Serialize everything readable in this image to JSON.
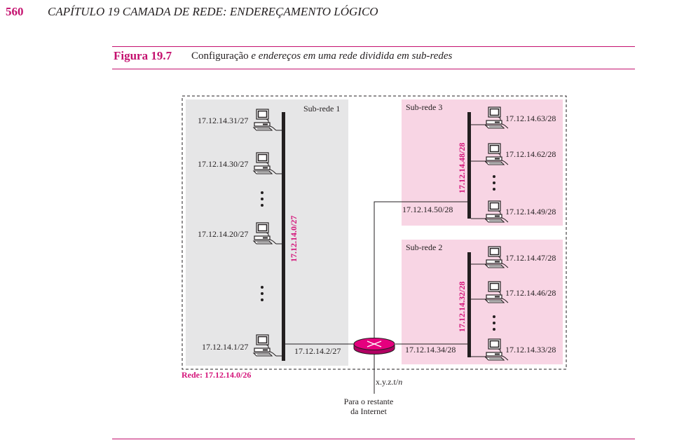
{
  "header": {
    "page_number": "560",
    "chapter_title": "CAPÍTULO 19   CAMADA DE REDE: ENDEREÇAMENTO LÓGICO"
  },
  "figure": {
    "number": "Figura 19.7",
    "caption_plain": "Configuração",
    "caption_italic": " e endereços em uma rede dividida em sub-redes"
  },
  "colors": {
    "accent": "#c4106e",
    "network_label": "#d4147a",
    "subnet1_fill": "#e6e6e7",
    "subnet23_fill": "#f8d5e4",
    "router_fill": "#e5007e"
  },
  "diagram": {
    "network_label": "Rede: 17.12.14.0/26",
    "subnet1": {
      "title": "Sub-rede 1",
      "address": "17.12.14.0/27",
      "hosts": [
        "17.12.14.31/27",
        "17.12.14.30/27",
        "17.12.14.20/27",
        "17.12.14.1/27"
      ],
      "router_interface": "17.12.14.2/27"
    },
    "subnet3": {
      "title": "Sub-rede 3",
      "address": "17.12.14.48/28",
      "hosts": [
        "17.12.14.63/28",
        "17.12.14.62/28",
        "17.12.14.49/28"
      ],
      "router_interface": "17.12.14.50/28"
    },
    "subnet2": {
      "title": "Sub-rede 2",
      "address": "17.12.14.32/28",
      "hosts": [
        "17.12.14.47/28",
        "17.12.14.46/28",
        "17.12.14.33/28"
      ],
      "router_interface": "17.12.14.34/28"
    },
    "external_interface": "x.y.z.t/",
    "external_interface_suffix": "n",
    "internet_label_line1": "Para o restante",
    "internet_label_line2": "da Internet",
    "icons": [
      "computer-icon",
      "router-icon",
      "ellipsis-dots-icon"
    ]
  }
}
